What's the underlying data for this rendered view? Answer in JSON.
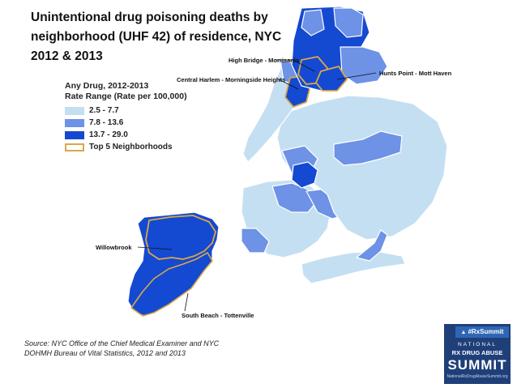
{
  "title_lines": [
    "Unintentional drug poisoning deaths by",
    "neighborhood (UHF 42) of residence, NYC",
    "2012 & 2013"
  ],
  "legend": {
    "title": "Any Drug, 2012-2013",
    "subtitle": "Rate Range (Rate per 100,000)",
    "items": [
      {
        "label": "2.5 - 7.7",
        "color": "#c5dff2"
      },
      {
        "label": "7.8 - 13.6",
        "color": "#6d92e6"
      },
      {
        "label": "13.7 - 29.0",
        "color": "#1449d1"
      }
    ],
    "outline_label": "Top 5 Neighborhoods",
    "outline_color": "#d9a84a"
  },
  "callouts": {
    "high_bridge": "High Bridge - Morrisania",
    "central_harlem": "Central Harlem - Morningside Heights",
    "hunts_point": "Hunts Point - Mott Haven",
    "willowbrook": "Willowbrook",
    "south_beach": "South Beach - Tottenville"
  },
  "source_lines": [
    "Source: NYC Office of the Chief Medical Examiner and NYC",
    "DOHMH Bureau of Vital Statistics, 2012 and 2013"
  ],
  "badge": {
    "tag": "#RxSummit",
    "line1": "NATIONAL",
    "line2": "RX DRUG ABUSE",
    "line3": "SUMMIT",
    "line4": "NationalRxDrugAbuseSummit.org",
    "color": "#1f3f79"
  }
}
